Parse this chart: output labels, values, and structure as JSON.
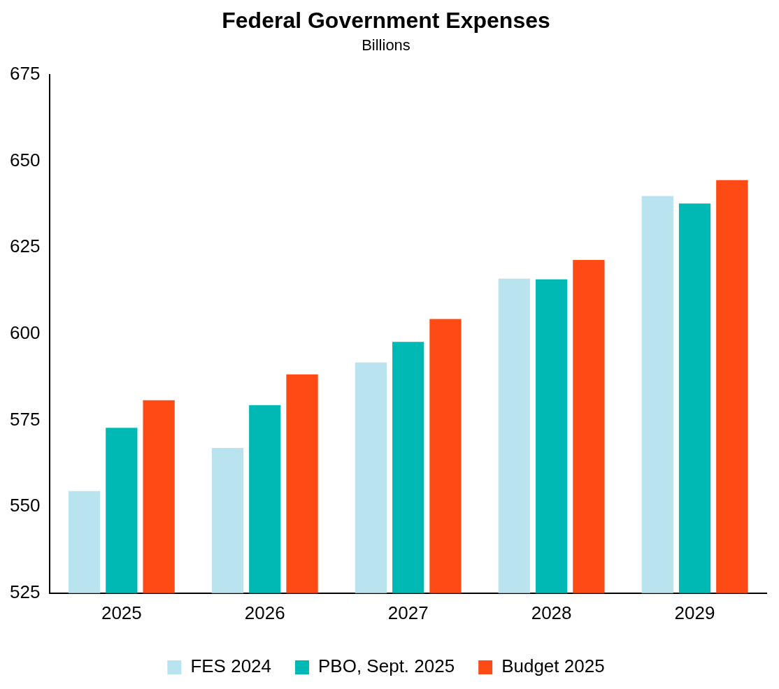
{
  "chart_data": {
    "type": "bar",
    "title": "Federal Government Expenses",
    "subtitle": "Billions",
    "categories": [
      "2025",
      "2026",
      "2027",
      "2028",
      "2029"
    ],
    "series": [
      {
        "name": "FES 2024",
        "color": "#b9e3ef",
        "values": [
          554.5,
          567.0,
          591.7,
          616.0,
          639.9
        ]
      },
      {
        "name": "PBO, Sept. 2025",
        "color": "#00b8b4",
        "values": [
          572.8,
          579.4,
          597.7,
          615.8,
          637.7
        ]
      },
      {
        "name": "Budget 2025",
        "color": "#fe4a14",
        "values": [
          580.8,
          588.3,
          604.3,
          621.4,
          644.5
        ]
      }
    ],
    "ylim": [
      525,
      675
    ],
    "yticks": [
      525,
      550,
      575,
      600,
      625,
      650,
      675
    ],
    "grid": false,
    "legend": "bottom"
  }
}
